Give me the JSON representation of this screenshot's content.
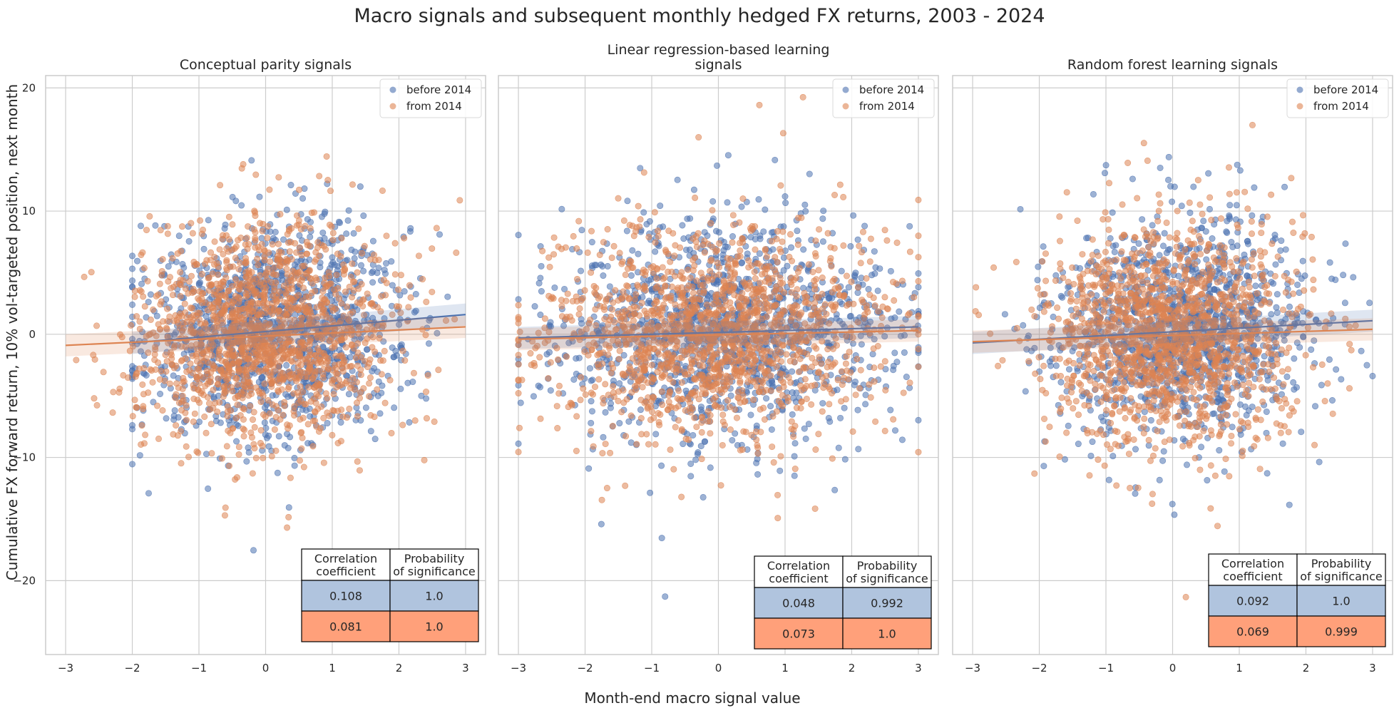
{
  "figure": {
    "title": "Macro signals and subsequent monthly hedged FX returns, 2003 - 2024",
    "xlabel": "Month-end macro signal value",
    "ylabel": "Cumulative FX forward return, 10% vol-targeted position, next month"
  },
  "colors": {
    "before": "#4c72b0",
    "from": "#dd8452",
    "before_cell": "#b0c4de",
    "from_cell": "#ffa07a",
    "grid": "#cccccc",
    "frame": "#cccccc"
  },
  "table_headers": [
    "Correlation\ncoefficient",
    "Probability\nof significance"
  ],
  "chart_data": [
    {
      "type": "scatter",
      "title": "Conceptual parity signals",
      "xlim": [
        -3.3,
        3.3
      ],
      "ylim": [
        -26,
        21
      ],
      "xticks": [
        -3,
        -2,
        -1,
        0,
        1,
        2,
        3
      ],
      "yticks": [
        -20,
        -10,
        0,
        10,
        20
      ],
      "grid": true,
      "legend_position": "top-right",
      "series": [
        {
          "name": "before 2014",
          "n_points": 1300,
          "x_range": [
            -2.0,
            3.0
          ],
          "fit": {
            "x": [
              -2.0,
              3.0
            ],
            "y": [
              -0.7,
              1.6
            ]
          }
        },
        {
          "name": "from 2014",
          "n_points": 1500,
          "x_range": [
            -3.0,
            3.0
          ],
          "fit": {
            "x": [
              -3.0,
              3.0
            ],
            "y": [
              -0.9,
              0.6
            ]
          }
        }
      ],
      "table": [
        {
          "series": "before 2014",
          "correlation": "0.108",
          "probability": "1.0"
        },
        {
          "series": "from 2014",
          "correlation": "0.081",
          "probability": "1.0"
        }
      ]
    },
    {
      "type": "scatter",
      "title": "Linear regression-based learning\nsignals",
      "xlim": [
        -3.3,
        3.3
      ],
      "ylim": [
        -26,
        21
      ],
      "xticks": [
        -3,
        -2,
        -1,
        0,
        1,
        2,
        3
      ],
      "yticks": [
        -20,
        -10,
        0,
        10,
        20
      ],
      "grid": true,
      "legend_position": "top-right",
      "series": [
        {
          "name": "before 2014",
          "n_points": 1300,
          "x_range": [
            -3.0,
            3.0
          ],
          "fit": {
            "x": [
              -3.0,
              3.0
            ],
            "y": [
              -0.3,
              0.6
            ]
          }
        },
        {
          "name": "from 2014",
          "n_points": 1500,
          "x_range": [
            -3.0,
            3.0
          ],
          "fit": {
            "x": [
              -3.0,
              3.0
            ],
            "y": [
              -0.4,
              0.3
            ]
          }
        }
      ],
      "table": [
        {
          "series": "before 2014",
          "correlation": "0.048",
          "probability": "0.992"
        },
        {
          "series": "from 2014",
          "correlation": "0.073",
          "probability": "1.0"
        }
      ]
    },
    {
      "type": "scatter",
      "title": "Random forest learning signals",
      "xlim": [
        -3.3,
        3.3
      ],
      "ylim": [
        -26,
        21
      ],
      "xticks": [
        -3,
        -2,
        -1,
        0,
        1,
        2,
        3
      ],
      "yticks": [
        -20,
        -10,
        0,
        10,
        20
      ],
      "grid": true,
      "legend_position": "top-right",
      "series": [
        {
          "name": "before 2014",
          "n_points": 1300,
          "x_range": [
            -3.0,
            3.0
          ],
          "fit": {
            "x": [
              -3.0,
              3.0
            ],
            "y": [
              -0.7,
              1.1
            ]
          }
        },
        {
          "name": "from 2014",
          "n_points": 1500,
          "x_range": [
            -3.0,
            3.0
          ],
          "fit": {
            "x": [
              -3.0,
              3.0
            ],
            "y": [
              -0.6,
              0.4
            ]
          }
        }
      ],
      "table": [
        {
          "series": "before 2014",
          "correlation": "0.092",
          "probability": "1.0"
        },
        {
          "series": "from 2014",
          "correlation": "0.069",
          "probability": "0.999"
        }
      ]
    }
  ]
}
